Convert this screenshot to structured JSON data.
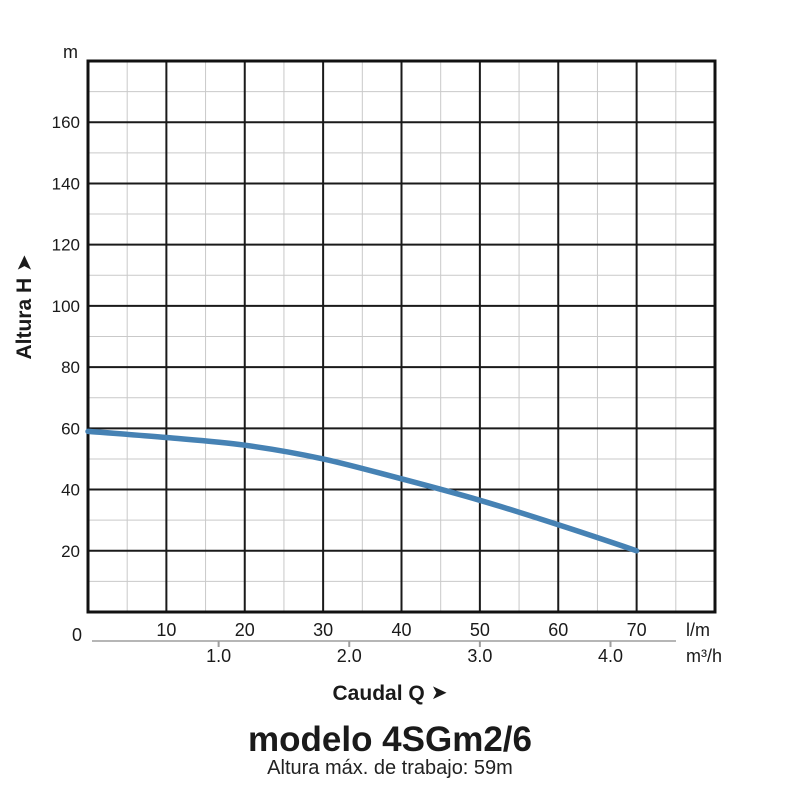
{
  "page": {
    "title": "modelo 4SGm2/6",
    "subtitle": "Altura máx. de trabajo: 59m"
  },
  "icons": {
    "right_arrow": "➤",
    "up_arrow": "➤"
  },
  "chart_data": {
    "type": "line",
    "title": "modelo 4SGm2/6",
    "subtitle": "Altura máx. de trabajo: 59m",
    "grid": true,
    "legend": "none",
    "x_axis": {
      "label": "Caudal Q",
      "primary_unit": "l/m",
      "primary_ticks": [
        10,
        20,
        30,
        40,
        50,
        60,
        70
      ],
      "primary_range": [
        0,
        80
      ],
      "primary_major_step": 10,
      "primary_minor_step": 5,
      "secondary_unit": "m³/h",
      "secondary_ticks": [
        1.0,
        2.0,
        3.0,
        4.0
      ],
      "lm_per_m3h": 16.6667
    },
    "y_axis": {
      "label": "Altura H",
      "unit": "m",
      "ticks": [
        0,
        20,
        40,
        60,
        80,
        100,
        120,
        140,
        160
      ],
      "range": [
        0,
        180
      ],
      "major_step": 20,
      "minor_step": 10
    },
    "origin_label": "0",
    "series": [
      {
        "name": "4SGm2/6",
        "color": "#4682b4",
        "points_lm_m": [
          [
            0,
            59
          ],
          [
            10,
            57
          ],
          [
            20,
            54.5
          ],
          [
            30,
            50
          ],
          [
            40,
            43.5
          ],
          [
            50,
            36.5
          ],
          [
            60,
            28.5
          ],
          [
            70,
            20
          ]
        ]
      }
    ],
    "colors": {
      "major_grid": "#1a1a1a",
      "minor_grid": "#c9c9c9",
      "border": "#111111",
      "secondary_axis": "#9e9e9e",
      "text": "#1a1a1a",
      "curve": "#4682b4"
    }
  }
}
